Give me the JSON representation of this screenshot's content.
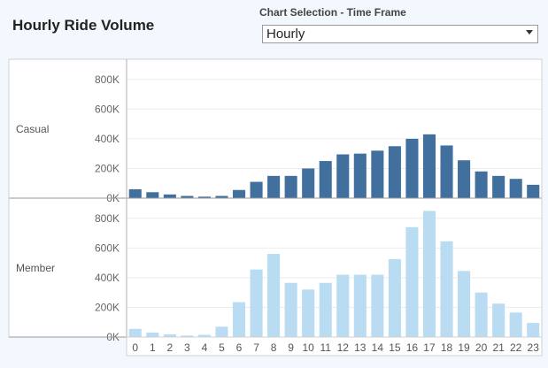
{
  "header": {
    "title": "Hourly Ride Volume",
    "selection_label": "Chart Selection - Time Frame",
    "selection_value": "Hourly"
  },
  "chart_data": {
    "type": "bar",
    "x": [
      "0",
      "1",
      "2",
      "3",
      "4",
      "5",
      "6",
      "7",
      "8",
      "9",
      "10",
      "11",
      "12",
      "13",
      "14",
      "15",
      "16",
      "17",
      "18",
      "19",
      "20",
      "21",
      "22",
      "23"
    ],
    "yticks": [
      "0K",
      "200K",
      "400K",
      "600K",
      "800K"
    ],
    "ylim": [
      0,
      900000
    ],
    "grid": true,
    "series": [
      {
        "name": "Casual",
        "color": "#41709e",
        "values": [
          60000,
          40000,
          25000,
          15000,
          10000,
          15000,
          55000,
          110000,
          150000,
          150000,
          200000,
          250000,
          295000,
          300000,
          320000,
          350000,
          400000,
          430000,
          355000,
          255000,
          180000,
          150000,
          130000,
          90000
        ]
      },
      {
        "name": "Member",
        "color": "#b9dcf2",
        "values": [
          55000,
          30000,
          18000,
          10000,
          15000,
          70000,
          235000,
          455000,
          560000,
          365000,
          320000,
          365000,
          420000,
          420000,
          420000,
          525000,
          740000,
          850000,
          645000,
          445000,
          300000,
          225000,
          165000,
          95000
        ]
      }
    ]
  }
}
